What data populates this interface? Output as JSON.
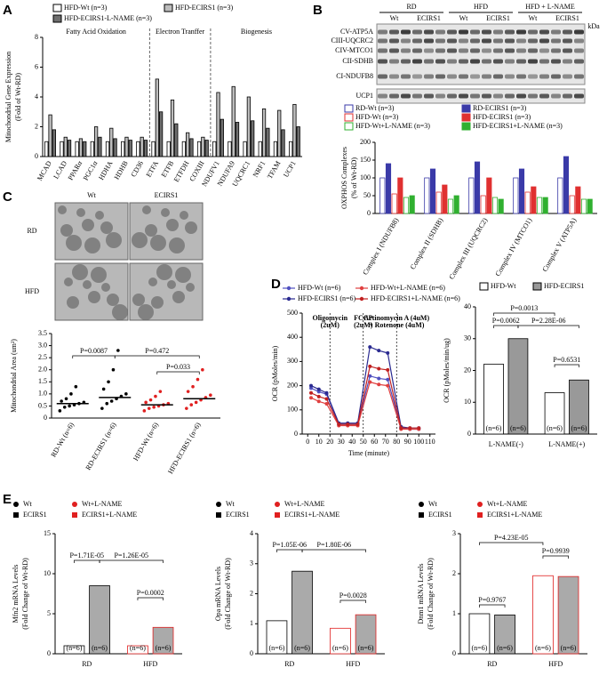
{
  "panels": [
    "A",
    "B",
    "C",
    "D",
    "E"
  ],
  "blot": {
    "groups": [
      "RD",
      "HFD",
      "HFD + L-NAME"
    ],
    "lanes": [
      "Wt",
      "ECIRS1",
      "Wt",
      "ECIRS1",
      "Wt",
      "ECIRS1"
    ],
    "bands": [
      "CV-ATP5A",
      "CIII-UQCRC2",
      "CIV-MTCO1",
      "CII-SDHB",
      "CI-NDUFB8",
      "UCP1"
    ],
    "unit": "kDa"
  },
  "micrographs": {
    "columns": [
      "Wt",
      "ECIRS1"
    ],
    "rows": [
      "RD",
      "HFD"
    ]
  },
  "chart_data": [
    {
      "type": "bar",
      "ylabel": "Mitochondrial Gene Expression",
      "ylabel2": "(Fold of Wt-RD)",
      "categories": [
        "MCAD",
        "LCAD",
        "PPARα",
        "PGC1α",
        "HDHA",
        "HDHB",
        "CD36",
        "ETFA",
        "ETFB",
        "ETFDH",
        "COXIII",
        "NDUFV1",
        "NDUFA9",
        "UQCRC1",
        "NRF1",
        "TFAM",
        "UCP1"
      ],
      "group_labels": [
        "Fatty Acid Oxidation",
        "Electron Tranffer",
        "Biogenesis"
      ],
      "ylim": [
        0,
        8
      ],
      "yticks": [
        0,
        2,
        4,
        6,
        8
      ],
      "series": [
        {
          "name": "HFD-Wt (n=3)",
          "color": "#000000",
          "fill": "#ffffff",
          "values": [
            1,
            1,
            1,
            1,
            1,
            1,
            1,
            1,
            1,
            1,
            1,
            1,
            1,
            1,
            1,
            1,
            1
          ]
        },
        {
          "name": "HFD-ECIRS1 (n=3)",
          "color": "#000000",
          "fill": "#bdbdbd",
          "values": [
            2.8,
            1.3,
            1.2,
            2.0,
            1.9,
            1.3,
            1.3,
            5.2,
            3.8,
            1.6,
            1.3,
            4.3,
            4.7,
            4.0,
            3.2,
            3.1,
            3.5
          ]
        },
        {
          "name": "HFD-ECIRS1-L-NAME (n=3)",
          "color": "#000000",
          "fill": "#6e6e6e",
          "values": [
            1.8,
            1.1,
            1.0,
            1.3,
            1.2,
            1.1,
            1.1,
            3.0,
            2.2,
            1.2,
            1.1,
            2.5,
            2.3,
            2.4,
            1.9,
            1.8,
            2.0
          ]
        }
      ]
    },
    {
      "type": "bar",
      "ylabel": "OXPHOS Complexes",
      "ylabel2": "(% of Wt-RD)",
      "categories": [
        "Complex I (NDUFB8)",
        "Complex II (SDHB)",
        "Complex III (UQCRC2)",
        "Complex IV (MTCO1)",
        "Complex V (ATP5A)"
      ],
      "ylim": [
        0,
        200
      ],
      "yticks": [
        0,
        50,
        100,
        150,
        200
      ],
      "series": [
        {
          "name": "RD-Wt (n=3)",
          "color": "#3a3aa8",
          "fill": "#ffffff",
          "values": [
            100,
            100,
            100,
            100,
            100
          ]
        },
        {
          "name": "RD-ECIRS1 (n=3)",
          "color": "#3a3aa8",
          "fill": "#3a3aa8",
          "values": [
            140,
            125,
            145,
            125,
            160
          ]
        },
        {
          "name": "HFD-Wt (n=3)",
          "color": "#e03030",
          "fill": "#ffffff",
          "values": [
            55,
            60,
            50,
            60,
            50
          ]
        },
        {
          "name": "HFD-ECIRS1 (n=3)",
          "color": "#e03030",
          "fill": "#e03030",
          "values": [
            100,
            80,
            100,
            75,
            75
          ]
        },
        {
          "name": "HFD-Wt+L-NAME (n=3)",
          "color": "#30b030",
          "fill": "#ffffff",
          "values": [
            45,
            40,
            45,
            45,
            40
          ]
        },
        {
          "name": "HFD-ECIRS1+L-NAME (n=3)",
          "color": "#30b030",
          "fill": "#30b030",
          "values": [
            50,
            50,
            40,
            45,
            40
          ]
        }
      ]
    },
    {
      "type": "strip",
      "ylabel": "Mitochondrial Area (um²)",
      "categories": [
        "RD-Wt (n=6)",
        "RD-ECIRS1 (n=6)",
        "HFD-Wt (n=6)",
        "HFD-ECIRS1 (n=6)"
      ],
      "colors": [
        "#000000",
        "#000000",
        "#e02020",
        "#e02020"
      ],
      "ylim": [
        0,
        3.5
      ],
      "yticks": [
        0,
        0.5,
        {
          "value": 1,
          "label": "1.0"
        },
        1.5,
        {
          "value": 2,
          "label": "2.0"
        },
        2.5,
        {
          "value": 3,
          "label": "3.0"
        },
        3.5
      ],
      "values": [
        0.6,
        0.85,
        0.55,
        0.8
      ],
      "points": [
        [
          0.3,
          0.45,
          0.5,
          0.55,
          0.6,
          0.65,
          0.7,
          0.8,
          1.0,
          1.3
        ],
        [
          0.4,
          0.6,
          0.7,
          0.8,
          0.9,
          1.0,
          1.2,
          1.5,
          2.0,
          2.8
        ],
        [
          0.3,
          0.4,
          0.45,
          0.5,
          0.55,
          0.6,
          0.65,
          0.75,
          0.9,
          1.1
        ],
        [
          0.4,
          0.55,
          0.65,
          0.75,
          0.85,
          0.95,
          1.1,
          1.3,
          1.6,
          2.0
        ]
      ],
      "annotations": [
        "P=0.0087",
        "P=0.472",
        "P=0.033"
      ]
    },
    {
      "type": "line",
      "ylabel": "OCR (pMoles/min)",
      "xlabel": "Time (minute)",
      "x": [
        3,
        10,
        17,
        28,
        36,
        45,
        56,
        64,
        72,
        84,
        92,
        100
      ],
      "xlim": [
        -5,
        115
      ],
      "xticks": [
        0,
        10,
        20,
        30,
        40,
        50,
        60,
        70,
        80,
        90,
        100,
        110
      ],
      "ylim": [
        0,
        500
      ],
      "yticks": [
        0,
        100,
        200,
        300,
        400,
        500
      ],
      "injections": [
        {
          "x": 20,
          "label": [
            "Oligomycin",
            "(2uM)"
          ]
        },
        {
          "x": 50,
          "label": [
            "FCCP",
            "(2uM)"
          ]
        },
        {
          "x": 80,
          "label": [
            "Actinomycin A (4uM)",
            "+ Rotenone (4uM)"
          ]
        }
      ],
      "series": [
        {
          "name": "HFD-Wt (n=6)",
          "color": "#5050c0",
          "values": [
            190,
            175,
            165,
            40,
            40,
            40,
            240,
            230,
            225,
            25,
            20,
            20
          ]
        },
        {
          "name": "HFD-ECIRS1 (n=6)",
          "color": "#2a2a90",
          "values": [
            200,
            185,
            170,
            45,
            45,
            45,
            360,
            345,
            335,
            30,
            25,
            25
          ]
        },
        {
          "name": "HFD-Wt+L-NAME (n=6)",
          "color": "#e04040",
          "values": [
            150,
            135,
            125,
            35,
            35,
            35,
            215,
            205,
            200,
            20,
            20,
            20
          ]
        },
        {
          "name": "HFD-ECIRS1+L-NAME (n=6)",
          "color": "#c02020",
          "values": [
            170,
            155,
            145,
            40,
            40,
            40,
            280,
            270,
            265,
            25,
            25,
            25
          ]
        }
      ]
    },
    {
      "type": "bar",
      "ylabel": "OCR (pMoles/min/ug)",
      "categories": [
        "L-NAME(-)",
        "L-NAME(+)"
      ],
      "ylim": [
        0,
        40
      ],
      "yticks": [
        0,
        10,
        20,
        30,
        40
      ],
      "n_label": "(n=6)",
      "series": [
        {
          "name": "HFD-Wt",
          "color": "#000000",
          "fill": "#ffffff",
          "values": [
            22,
            13
          ]
        },
        {
          "name": "HFD-ECIRS1",
          "color": "#000000",
          "fill": "#999999",
          "values": [
            30,
            17
          ]
        }
      ],
      "annotations": [
        "P=0.0013",
        "P=0.0062",
        "P=2.28E-06",
        "P=0.6531"
      ]
    },
    {
      "type": "bar",
      "ylabel": "Mfn2 mRNA Levels",
      "ylabel2": "(Fold Change of Wt-RD)",
      "categories": [
        "RD",
        "HFD"
      ],
      "ylim": [
        0,
        15
      ],
      "yticks": [
        0,
        5,
        10,
        15
      ],
      "n_label": "(n=6)",
      "series": [
        {
          "name": "Wt",
          "color": "#000000",
          "fill": "#ffffff",
          "values": [
            1,
            null
          ]
        },
        {
          "name": "ECIRS1",
          "color": "#000000",
          "fill": "#aaaaaa",
          "values": [
            8.5,
            null
          ]
        },
        {
          "name": "Wt+L-NAME",
          "color": "#e02020",
          "fill": "#ffffff",
          "values": [
            null,
            1
          ]
        },
        {
          "name": "ECIRS1+L-NAME",
          "color": "#e02020",
          "fill": "#aaaaaa",
          "values": [
            null,
            3.3
          ]
        }
      ],
      "annotations": [
        "P=1.71E-05",
        "P=1.26E-05",
        "P=0.0002"
      ]
    },
    {
      "type": "bar",
      "ylabel": "Opa mRNA Levels",
      "ylabel2": "(Fold Change of Wt-RD)",
      "categories": [
        "RD",
        "HFD"
      ],
      "ylim": [
        0,
        4
      ],
      "yticks": [
        0,
        1,
        2,
        3,
        4
      ],
      "n_label": "(n=6)",
      "series": [
        {
          "name": "Wt",
          "color": "#000000",
          "fill": "#ffffff",
          "values": [
            1.1,
            null
          ]
        },
        {
          "name": "ECIRS1",
          "color": "#000000",
          "fill": "#aaaaaa",
          "values": [
            2.75,
            null
          ]
        },
        {
          "name": "Wt+L-NAME",
          "color": "#e02020",
          "fill": "#ffffff",
          "values": [
            null,
            0.85
          ]
        },
        {
          "name": "ECIRS1+L-NAME",
          "color": "#e02020",
          "fill": "#aaaaaa",
          "values": [
            null,
            1.3
          ]
        }
      ],
      "annotations": [
        "P=1.05E-06",
        "P=1.80E-06",
        "P=0.0028"
      ]
    },
    {
      "type": "bar",
      "ylabel": "Dnm1 mRNA Levels",
      "ylabel2": "(Fold Change of Wt-RD)",
      "categories": [
        "RD",
        "HFD"
      ],
      "ylim": [
        0,
        3
      ],
      "yticks": [
        0,
        1,
        2,
        3
      ],
      "n_label": "(n=6)",
      "series": [
        {
          "name": "Wt",
          "color": "#000000",
          "fill": "#ffffff",
          "values": [
            1.0,
            null
          ]
        },
        {
          "name": "ECIRS1",
          "color": "#000000",
          "fill": "#aaaaaa",
          "values": [
            0.97,
            null
          ]
        },
        {
          "name": "Wt+L-NAME",
          "color": "#e02020",
          "fill": "#ffffff",
          "values": [
            null,
            1.95
          ]
        },
        {
          "name": "ECIRS1+L-NAME",
          "color": "#e02020",
          "fill": "#aaaaaa",
          "values": [
            null,
            1.93
          ]
        }
      ],
      "annotations": [
        "P=0.9767",
        "P=4.23E-05",
        "P=0.9939"
      ]
    }
  ]
}
